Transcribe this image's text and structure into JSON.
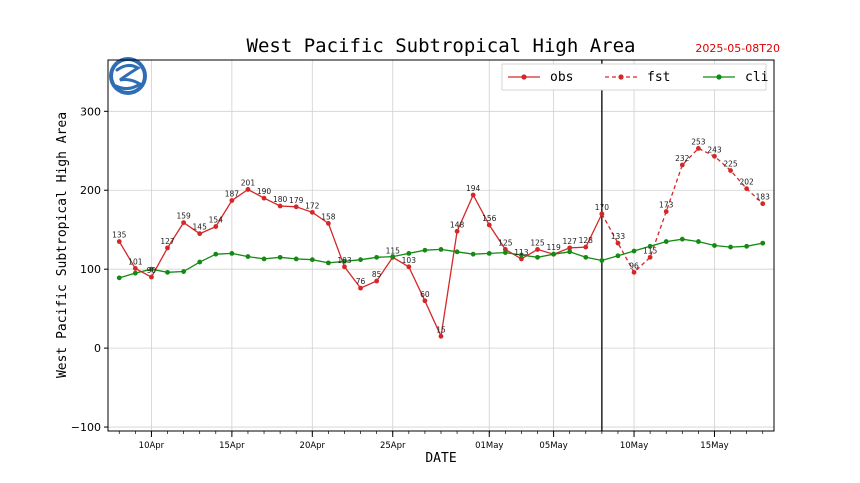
{
  "chart_data": {
    "type": "line",
    "title": "West Pacific Subtropical High Area",
    "timestamp": "2025-05-08T20",
    "xlabel": "DATE",
    "ylabel": "West Pacific Subtropical High Area",
    "ylim": [
      -105,
      365
    ],
    "yticks": [
      "−100",
      "0",
      "100",
      "200",
      "300"
    ],
    "ytick_values": [
      -100,
      0,
      100,
      200,
      300
    ],
    "x_start": "2025-04-08",
    "xlim_days": [
      -0.7,
      40.7
    ],
    "xticks": [
      {
        "label": "10Apr",
        "day": 2
      },
      {
        "label": "15Apr",
        "day": 7
      },
      {
        "label": "20Apr",
        "day": 12
      },
      {
        "label": "25Apr",
        "day": 17
      },
      {
        "label": "01May",
        "day": 23
      },
      {
        "label": "05May",
        "day": 27
      },
      {
        "label": "10May",
        "day": 32
      },
      {
        "label": "15May",
        "day": 37
      }
    ],
    "grid": true,
    "legend_position": "top-right",
    "vline_date": "2025-05-08",
    "series": [
      {
        "name": "obs",
        "color": "#d62728",
        "style": "solid",
        "start_date": "2025-04-08",
        "values": [
          135,
          101,
          90,
          127,
          159,
          145,
          154,
          187,
          201,
          190,
          180,
          179,
          172,
          158,
          103,
          76,
          85,
          115,
          103,
          60,
          15,
          148,
          194,
          156,
          125,
          113,
          125,
          119,
          127,
          128,
          170
        ]
      },
      {
        "name": "fst",
        "color": "#d62728",
        "style": "dashed",
        "start_date": "2025-05-08",
        "values": [
          170,
          133,
          96,
          115,
          173,
          232,
          253,
          243,
          225,
          202,
          183
        ]
      },
      {
        "name": "cli",
        "color": "#138a13",
        "style": "solid",
        "start_date": "2025-04-08",
        "values": [
          89,
          95,
          100,
          96,
          97,
          109,
          119,
          120,
          116,
          113,
          115,
          113,
          112,
          108,
          110,
          112,
          115,
          116,
          120,
          124,
          125,
          122,
          119,
          120,
          121,
          118,
          115,
          119,
          122,
          115,
          111,
          117,
          123,
          129,
          135,
          138,
          135,
          130,
          128,
          129,
          133
        ]
      }
    ],
    "point_labels_series": [
      "obs",
      "fst"
    ]
  }
}
